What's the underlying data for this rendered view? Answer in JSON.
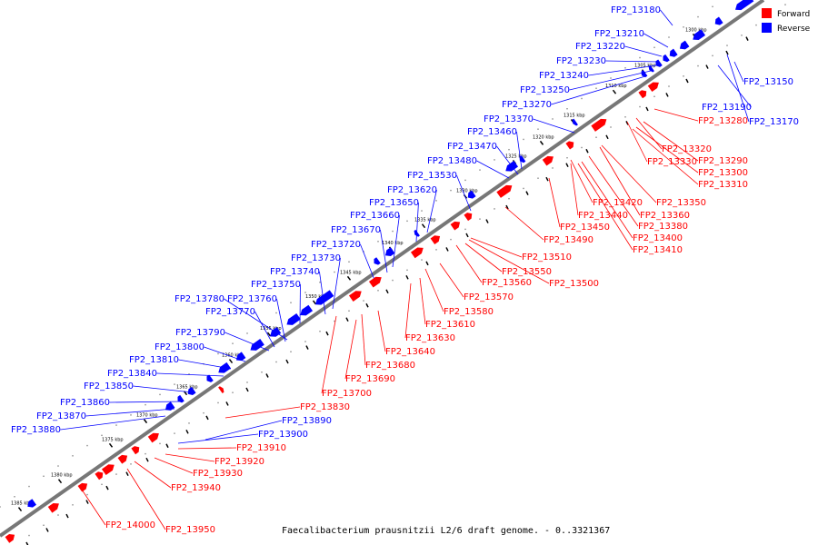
{
  "legend": {
    "forward_label": "Forward",
    "reverse_label": "Reverse"
  },
  "colors": {
    "forward": "#ff0000",
    "reverse": "#0000ff",
    "backbone": "#777777",
    "leader_forward": "#ff0000",
    "leader_reverse": "#0000ff"
  },
  "caption": "Faecalibacterium prausnitzii L2/6 draft genome. - 0..3321367",
  "ticks": [
    "1300 kbp",
    "1305 kbp",
    "1310 kbp",
    "1315 kbp",
    "1320 kbp",
    "1325 kbp",
    "1330 kbp",
    "1335 kbp",
    "1340 kbp",
    "1345 kbp",
    "1350 kbp",
    "1355 kbp",
    "1360 kbp",
    "1365 kbp",
    "1370 kbp",
    "1375 kbp",
    "1380 kbp",
    "1385 kbp"
  ],
  "reverse_genes": [
    "FP2_13180",
    "FP2_13210",
    "FP2_13220",
    "FP2_13230",
    "FP2_13240",
    "FP2_13250",
    "FP2_13270",
    "FP2_13370",
    "FP2_13460",
    "FP2_13470",
    "FP2_13480",
    "FP2_13530",
    "FP2_13620",
    "FP2_13650",
    "FP2_13660",
    "FP2_13670",
    "FP2_13720",
    "FP2_13730",
    "FP2_13740",
    "FP2_13750",
    "FP2_13780",
    "FP2_13760",
    "FP2_13770",
    "FP2_13790",
    "FP2_13800",
    "FP2_13810",
    "FP2_13840",
    "FP2_13850",
    "FP2_13860",
    "FP2_13870",
    "FP2_13880",
    "FP2_13150",
    "FP2_13190",
    "FP2_13170",
    "FP2_13890",
    "FP2_13900"
  ],
  "forward_genes": [
    "FP2_13280",
    "FP2_13320",
    "FP2_13290",
    "FP2_13330",
    "FP2_13300",
    "FP2_13310",
    "FP2_13350",
    "FP2_13420",
    "FP2_13360",
    "FP2_13440",
    "FP2_13380",
    "FP2_13450",
    "FP2_13400",
    "FP2_13490",
    "FP2_13410",
    "FP2_13510",
    "FP2_13550",
    "FP2_13560",
    "FP2_13500",
    "FP2_13570",
    "FP2_13580",
    "FP2_13610",
    "FP2_13630",
    "FP2_13640",
    "FP2_13680",
    "FP2_13690",
    "FP2_13700",
    "FP2_13830",
    "FP2_13910",
    "FP2_13920",
    "FP2_13930",
    "FP2_13940",
    "FP2_14000",
    "FP2_13950"
  ]
}
